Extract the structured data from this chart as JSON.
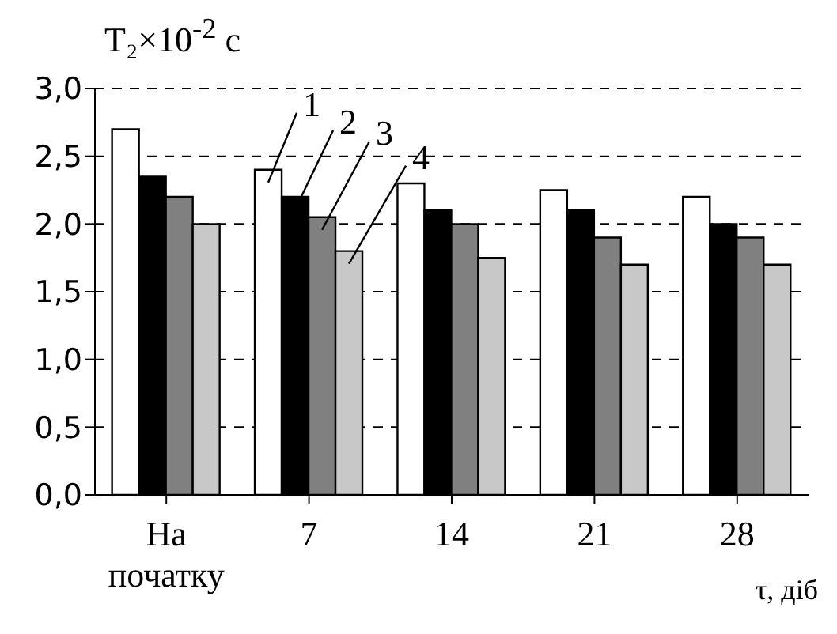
{
  "chart_data": {
    "type": "bar",
    "ylabel": "T₂×10$^{-2}$ с",
    "xlabel": "τ, діб",
    "categories": [
      "На початку",
      "7",
      "14",
      "21",
      "28"
    ],
    "series": [
      {
        "name": "1",
        "color": "#ffffff",
        "values": [
          2.7,
          2.4,
          2.3,
          2.25,
          2.2
        ]
      },
      {
        "name": "2",
        "color": "#000000",
        "values": [
          2.35,
          2.2,
          2.1,
          2.1,
          2.0
        ]
      },
      {
        "name": "3",
        "color": "#808080",
        "values": [
          2.2,
          2.05,
          2.0,
          1.9,
          1.9
        ]
      },
      {
        "name": "4",
        "color": "#c8c8c8",
        "values": [
          2.0,
          1.8,
          1.75,
          1.7,
          1.7
        ]
      }
    ],
    "ylim": [
      0,
      3
    ],
    "yticks": [
      {
        "value": 0,
        "label": "0,0"
      },
      {
        "value": 0.5,
        "label": "0,5"
      },
      {
        "value": 1,
        "label": "1,0"
      },
      {
        "value": 1.5,
        "label": "1,5"
      },
      {
        "value": 2,
        "label": "2,0"
      },
      {
        "value": 2.5,
        "label": "2,5"
      },
      {
        "value": 3,
        "label": "3,0"
      }
    ],
    "grid": "y",
    "legend": false
  }
}
